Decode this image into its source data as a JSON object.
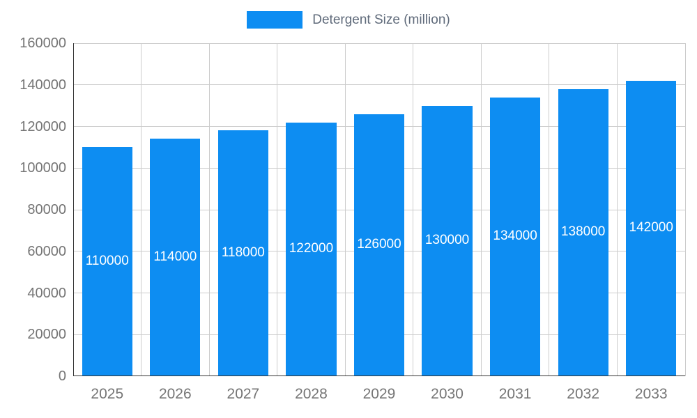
{
  "chart_data": {
    "type": "bar",
    "title": "",
    "legend": "Detergent Size (million)",
    "categories": [
      "2025",
      "2026",
      "2027",
      "2028",
      "2029",
      "2030",
      "2031",
      "2032",
      "2033"
    ],
    "values": [
      110000,
      114000,
      118000,
      122000,
      126000,
      130000,
      134000,
      138000,
      142000
    ],
    "data_labels": [
      110000,
      114000,
      118000,
      122000,
      126000,
      130000,
      134000,
      138000,
      142000
    ],
    "xlabel": "",
    "ylabel": "",
    "ylim": [
      0,
      160000
    ],
    "yticks": [
      0,
      20000,
      40000,
      60000,
      80000,
      100000,
      120000,
      140000,
      160000
    ],
    "grid": "on",
    "legend_position": "top-center",
    "bar_color": "#0d8df2",
    "grid_color": "#cccccc",
    "axis_line_color": "#333333",
    "tick_label_color": "#757575",
    "legend_text_color": "#5f6a7a",
    "bar_value_label_color": "#ffffff"
  }
}
